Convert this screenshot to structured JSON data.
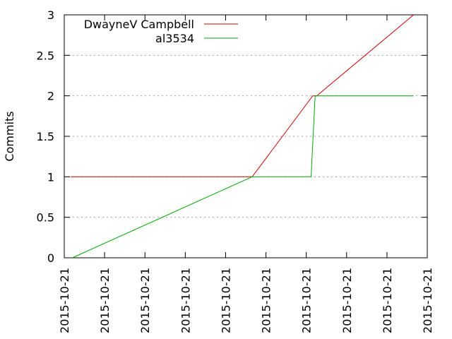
{
  "chart_data": {
    "type": "line",
    "title": "",
    "xlabel": "",
    "ylabel": "Commits",
    "ylim": [
      0,
      3
    ],
    "yticks": [
      "0",
      "0.5",
      "1",
      "1.5",
      "2",
      "2.5",
      "3"
    ],
    "ytick_values": [
      0,
      0.5,
      1,
      1.5,
      2,
      2.5,
      3
    ],
    "xticks": [
      "2015-10-21",
      "2015-10-21",
      "2015-10-21",
      "2015-10-21",
      "2015-10-21",
      "2015-10-21",
      "2015-10-21",
      "2015-10-21",
      "2015-10-21",
      "2015-10-21"
    ],
    "xlim": [
      0,
      9
    ],
    "grid": "horizontal-dotted",
    "legend_position": "top-left",
    "series": [
      {
        "name": "DwayneV Campbell",
        "color": "#cc0000",
        "points": [
          [
            0.16,
            1
          ],
          [
            4.66,
            1
          ],
          [
            6.16,
            2
          ],
          [
            6.26,
            2
          ],
          [
            8.66,
            3
          ]
        ]
      },
      {
        "name": "al3534",
        "color": "#00aa00",
        "points": [
          [
            0.2,
            0
          ],
          [
            4.66,
            1
          ],
          [
            6.12,
            1
          ],
          [
            6.22,
            2
          ],
          [
            8.66,
            2
          ]
        ]
      }
    ]
  }
}
